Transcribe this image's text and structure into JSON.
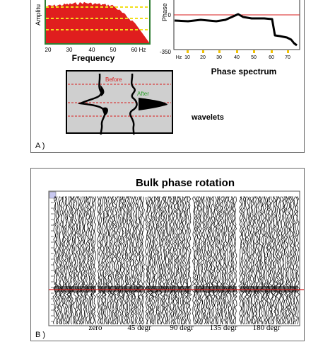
{
  "panel_a": {
    "corner_label": "A )",
    "amplitude_spectrum": {
      "ylabel": "Amplitu",
      "xlabel": "Frequency",
      "ticks": [
        "20",
        "30",
        "40",
        "50",
        "60 Hz"
      ],
      "plot_color": "#e01e1e",
      "grid_color": "#f2e01a",
      "frame_color": "#2e7d32"
    },
    "phase_spectrum": {
      "title": "Phase spectrum",
      "ylabel": "Phase",
      "y_ticks": [
        "0",
        "-350"
      ],
      "x_ticks": [
        "Hz",
        "10",
        "20",
        "30",
        "40",
        "50",
        "60",
        "70"
      ],
      "reference_color": "#d81b1b",
      "tick_marker_color": "#f2c200"
    },
    "wavelets": {
      "label": "wavelets",
      "before_label": "Before",
      "after_label": "After",
      "before_color": "#d81b1b",
      "after_color": "#2e9e2e",
      "panel_color": "#cfcfcf"
    }
  },
  "panel_b": {
    "title": "Bulk phase rotation",
    "corner_label": "B )",
    "columns": [
      "zero",
      "45 degr",
      "90 degr",
      "135 degr",
      "180 degr"
    ],
    "horizon_color": "#d81b1b"
  }
}
